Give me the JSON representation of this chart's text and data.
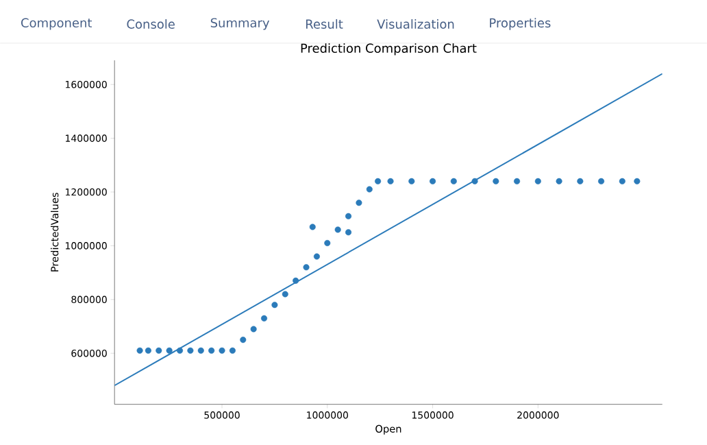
{
  "chart_data": {
    "type": "scatter",
    "title": "Prediction Comparison Chart",
    "xlabel": "Open",
    "ylabel": "PredictedValues",
    "annotations": [
      "Component",
      "Console",
      "Summary",
      "Result",
      "Visualization",
      "Properties"
    ],
    "grid": false,
    "xlim": [
      -10000,
      2590000
    ],
    "ylim": [
      410000,
      1690000
    ],
    "xticks": [
      500000,
      1000000,
      1500000,
      2000000
    ],
    "yticks": [
      600000,
      800000,
      1000000,
      1200000,
      1400000,
      1600000
    ],
    "series": [
      {
        "color": "#2b7bba",
        "marker": "circle",
        "x": [
          110000,
          150000,
          200000,
          250000,
          300000,
          350000,
          400000,
          450000,
          500000,
          550000,
          600000,
          650000,
          700000,
          750000,
          800000,
          850000,
          900000,
          930000,
          950000,
          1000000,
          1050000,
          1100000,
          1100000,
          1150000,
          1200000,
          1240000,
          1300000,
          1400000,
          1500000,
          1600000,
          1700000,
          1800000,
          1900000,
          2000000,
          2100000,
          2200000,
          2300000,
          2400000,
          2470000
        ],
        "values": [
          610000,
          610000,
          610000,
          610000,
          610000,
          610000,
          610000,
          610000,
          610000,
          610000,
          650000,
          690000,
          730000,
          780000,
          820000,
          870000,
          920000,
          1070000,
          960000,
          1010000,
          1060000,
          1050000,
          1110000,
          1160000,
          1210000,
          1240000,
          1240000,
          1240000,
          1240000,
          1240000,
          1240000,
          1240000,
          1240000,
          1240000,
          1240000,
          1240000,
          1240000,
          1240000,
          1240000
        ]
      },
      {
        "type": "line",
        "color": "#2b7bba",
        "marker": "none",
        "x": [
          -10000,
          2590000
        ],
        "values": [
          480000,
          1640000
        ]
      }
    ]
  }
}
